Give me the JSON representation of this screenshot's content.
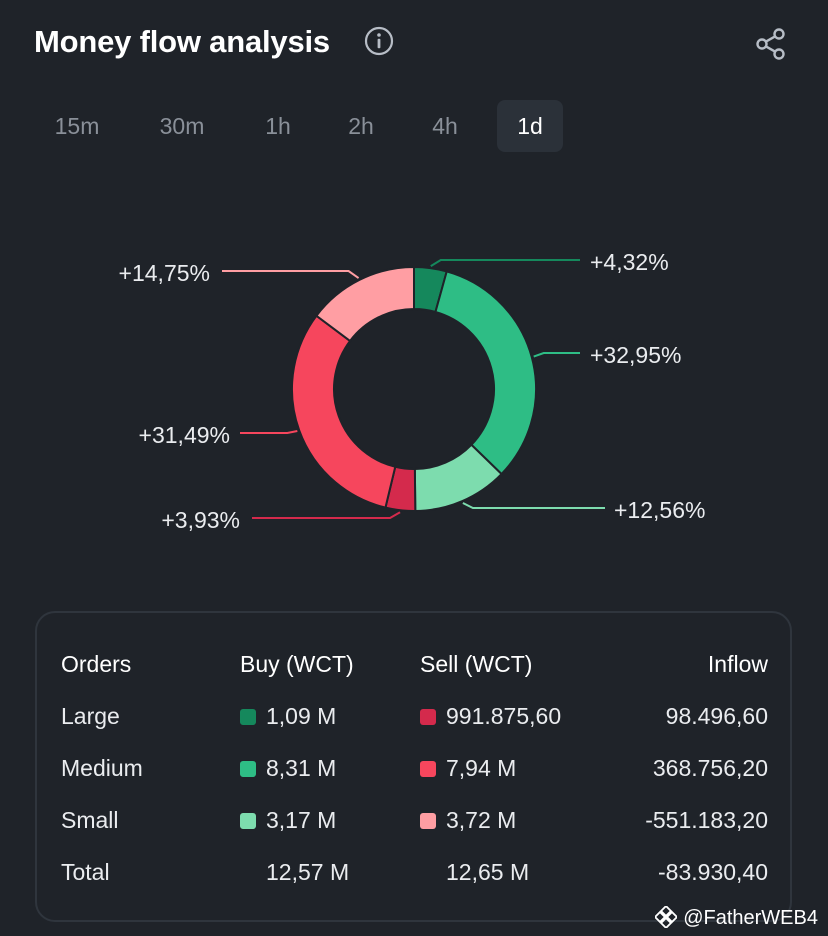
{
  "header": {
    "title": "Money flow analysis",
    "info_icon": "info-icon",
    "share_icon": "share-icon"
  },
  "tabs": [
    {
      "label": "15m",
      "active": false
    },
    {
      "label": "30m",
      "active": false
    },
    {
      "label": "1h",
      "active": false
    },
    {
      "label": "2h",
      "active": false
    },
    {
      "label": "4h",
      "active": false
    },
    {
      "label": "1d",
      "active": true
    }
  ],
  "chart_data": {
    "type": "pie",
    "variant": "donut",
    "slices": [
      {
        "name": "Large Buy",
        "value": 4.32,
        "label": "+4,32%",
        "color": "#15885c"
      },
      {
        "name": "Medium Buy",
        "value": 32.95,
        "label": "+32,95%",
        "color": "#2ebd85"
      },
      {
        "name": "Small Buy",
        "value": 12.56,
        "label": "+12,56%",
        "color": "#7ddcae"
      },
      {
        "name": "Large Sell",
        "value": 3.93,
        "label": "+3,93%",
        "color": "#d42a4c"
      },
      {
        "name": "Medium Sell",
        "value": 31.49,
        "label": "+31,49%",
        "color": "#f6465d"
      },
      {
        "name": "Small Sell",
        "value": 14.75,
        "label": "+14,75%",
        "color": "#ff9ea3"
      }
    ]
  },
  "table": {
    "headers": {
      "orders": "Orders",
      "buy": "Buy (WCT)",
      "sell": "Sell (WCT)",
      "inflow": "Inflow"
    },
    "rows": [
      {
        "order": "Large",
        "buy": "1,09 M",
        "buy_color": "#15885c",
        "sell": "991.875,60",
        "sell_color": "#d42a4c",
        "inflow": "98.496,60"
      },
      {
        "order": "Medium",
        "buy": "8,31 M",
        "buy_color": "#2ebd85",
        "sell": "7,94 M",
        "sell_color": "#f6465d",
        "inflow": "368.756,20"
      },
      {
        "order": "Small",
        "buy": "3,17 M",
        "buy_color": "#7ddcae",
        "sell": "3,72 M",
        "sell_color": "#ff9ea3",
        "inflow": "-551.183,20"
      }
    ],
    "total": {
      "order": "Total",
      "buy": "12,57 M",
      "sell": "12,65 M",
      "inflow": "-83.930,40"
    }
  },
  "watermark": {
    "text": "@FatherWEB4",
    "icon": "binance-logo-icon"
  }
}
